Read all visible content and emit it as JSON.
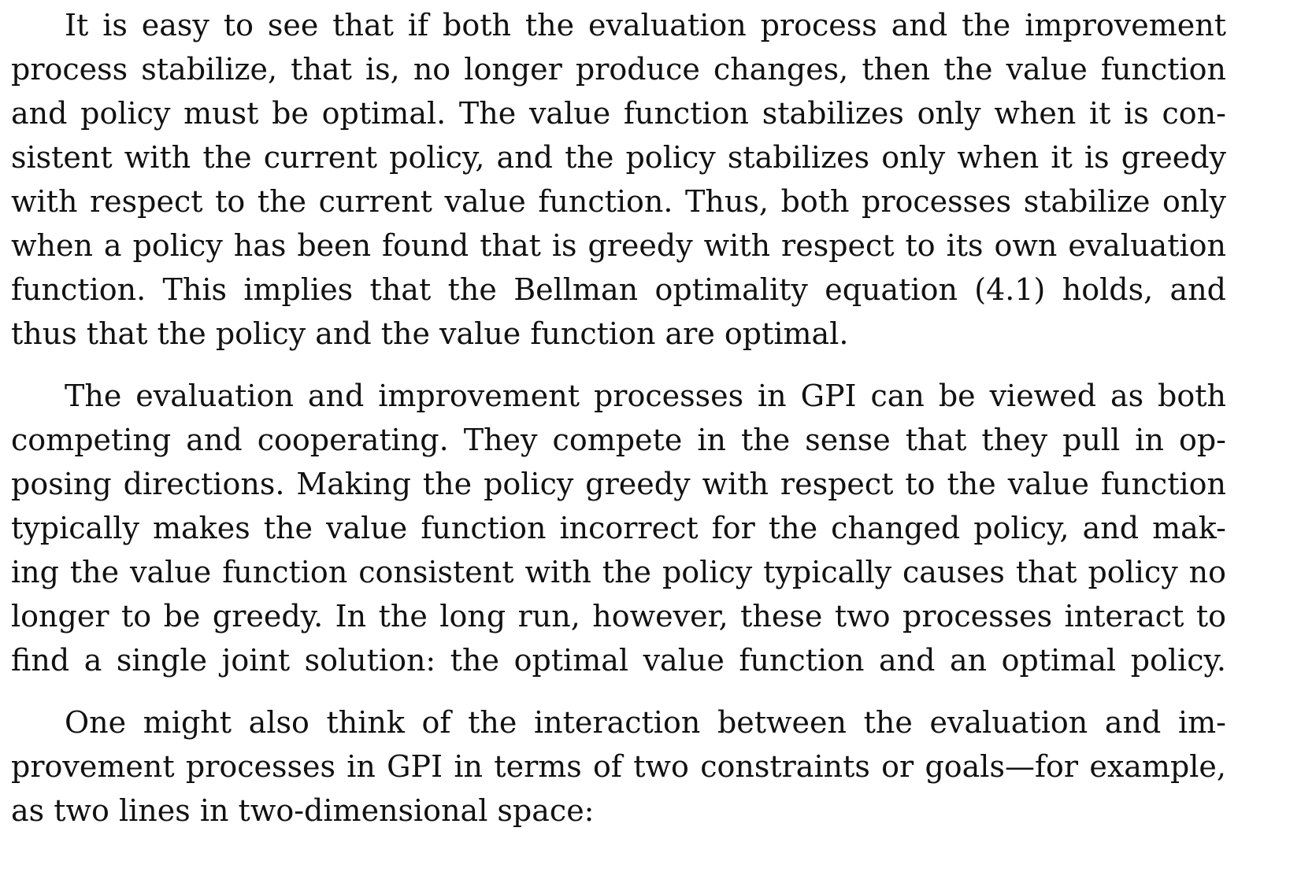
{
  "paragraphs": [
    {
      "lines": [
        "It is easy to see that if both the evaluation process and the improvement",
        "process stabilize, that is, no longer produce changes, then the value function",
        "and policy must be optimal.  The value function stabilizes only when it is con-",
        "sistent with the current policy, and the policy stabilizes only when it is greedy",
        "with respect to the current value function.  Thus, both processes stabilize only",
        "when a policy has been found that is greedy with respect to its own evaluation",
        "function.  This implies that the Bellman optimality equation (4.1) holds, and",
        "thus that the policy and the value function are optimal."
      ]
    },
    {
      "lines": [
        "The evaluation and improvement processes in GPI can be viewed as both",
        "competing and cooperating.  They compete in the sense that they pull in op-",
        "posing directions.  Making the policy greedy with respect to the value function",
        "typically makes the value function incorrect for the changed policy, and mak-",
        "ing the value function consistent with the policy typically causes that policy no",
        "longer to be greedy.  In the long run, however, these two processes interact to",
        "find a single joint solution: the optimal value function and an optimal policy."
      ]
    },
    {
      "lines": [
        "One might also think of the interaction between the evaluation and im-",
        "provement processes in GPI in terms of two constraints or goals—for example,",
        "as two lines in two-dimensional space:"
      ]
    }
  ]
}
